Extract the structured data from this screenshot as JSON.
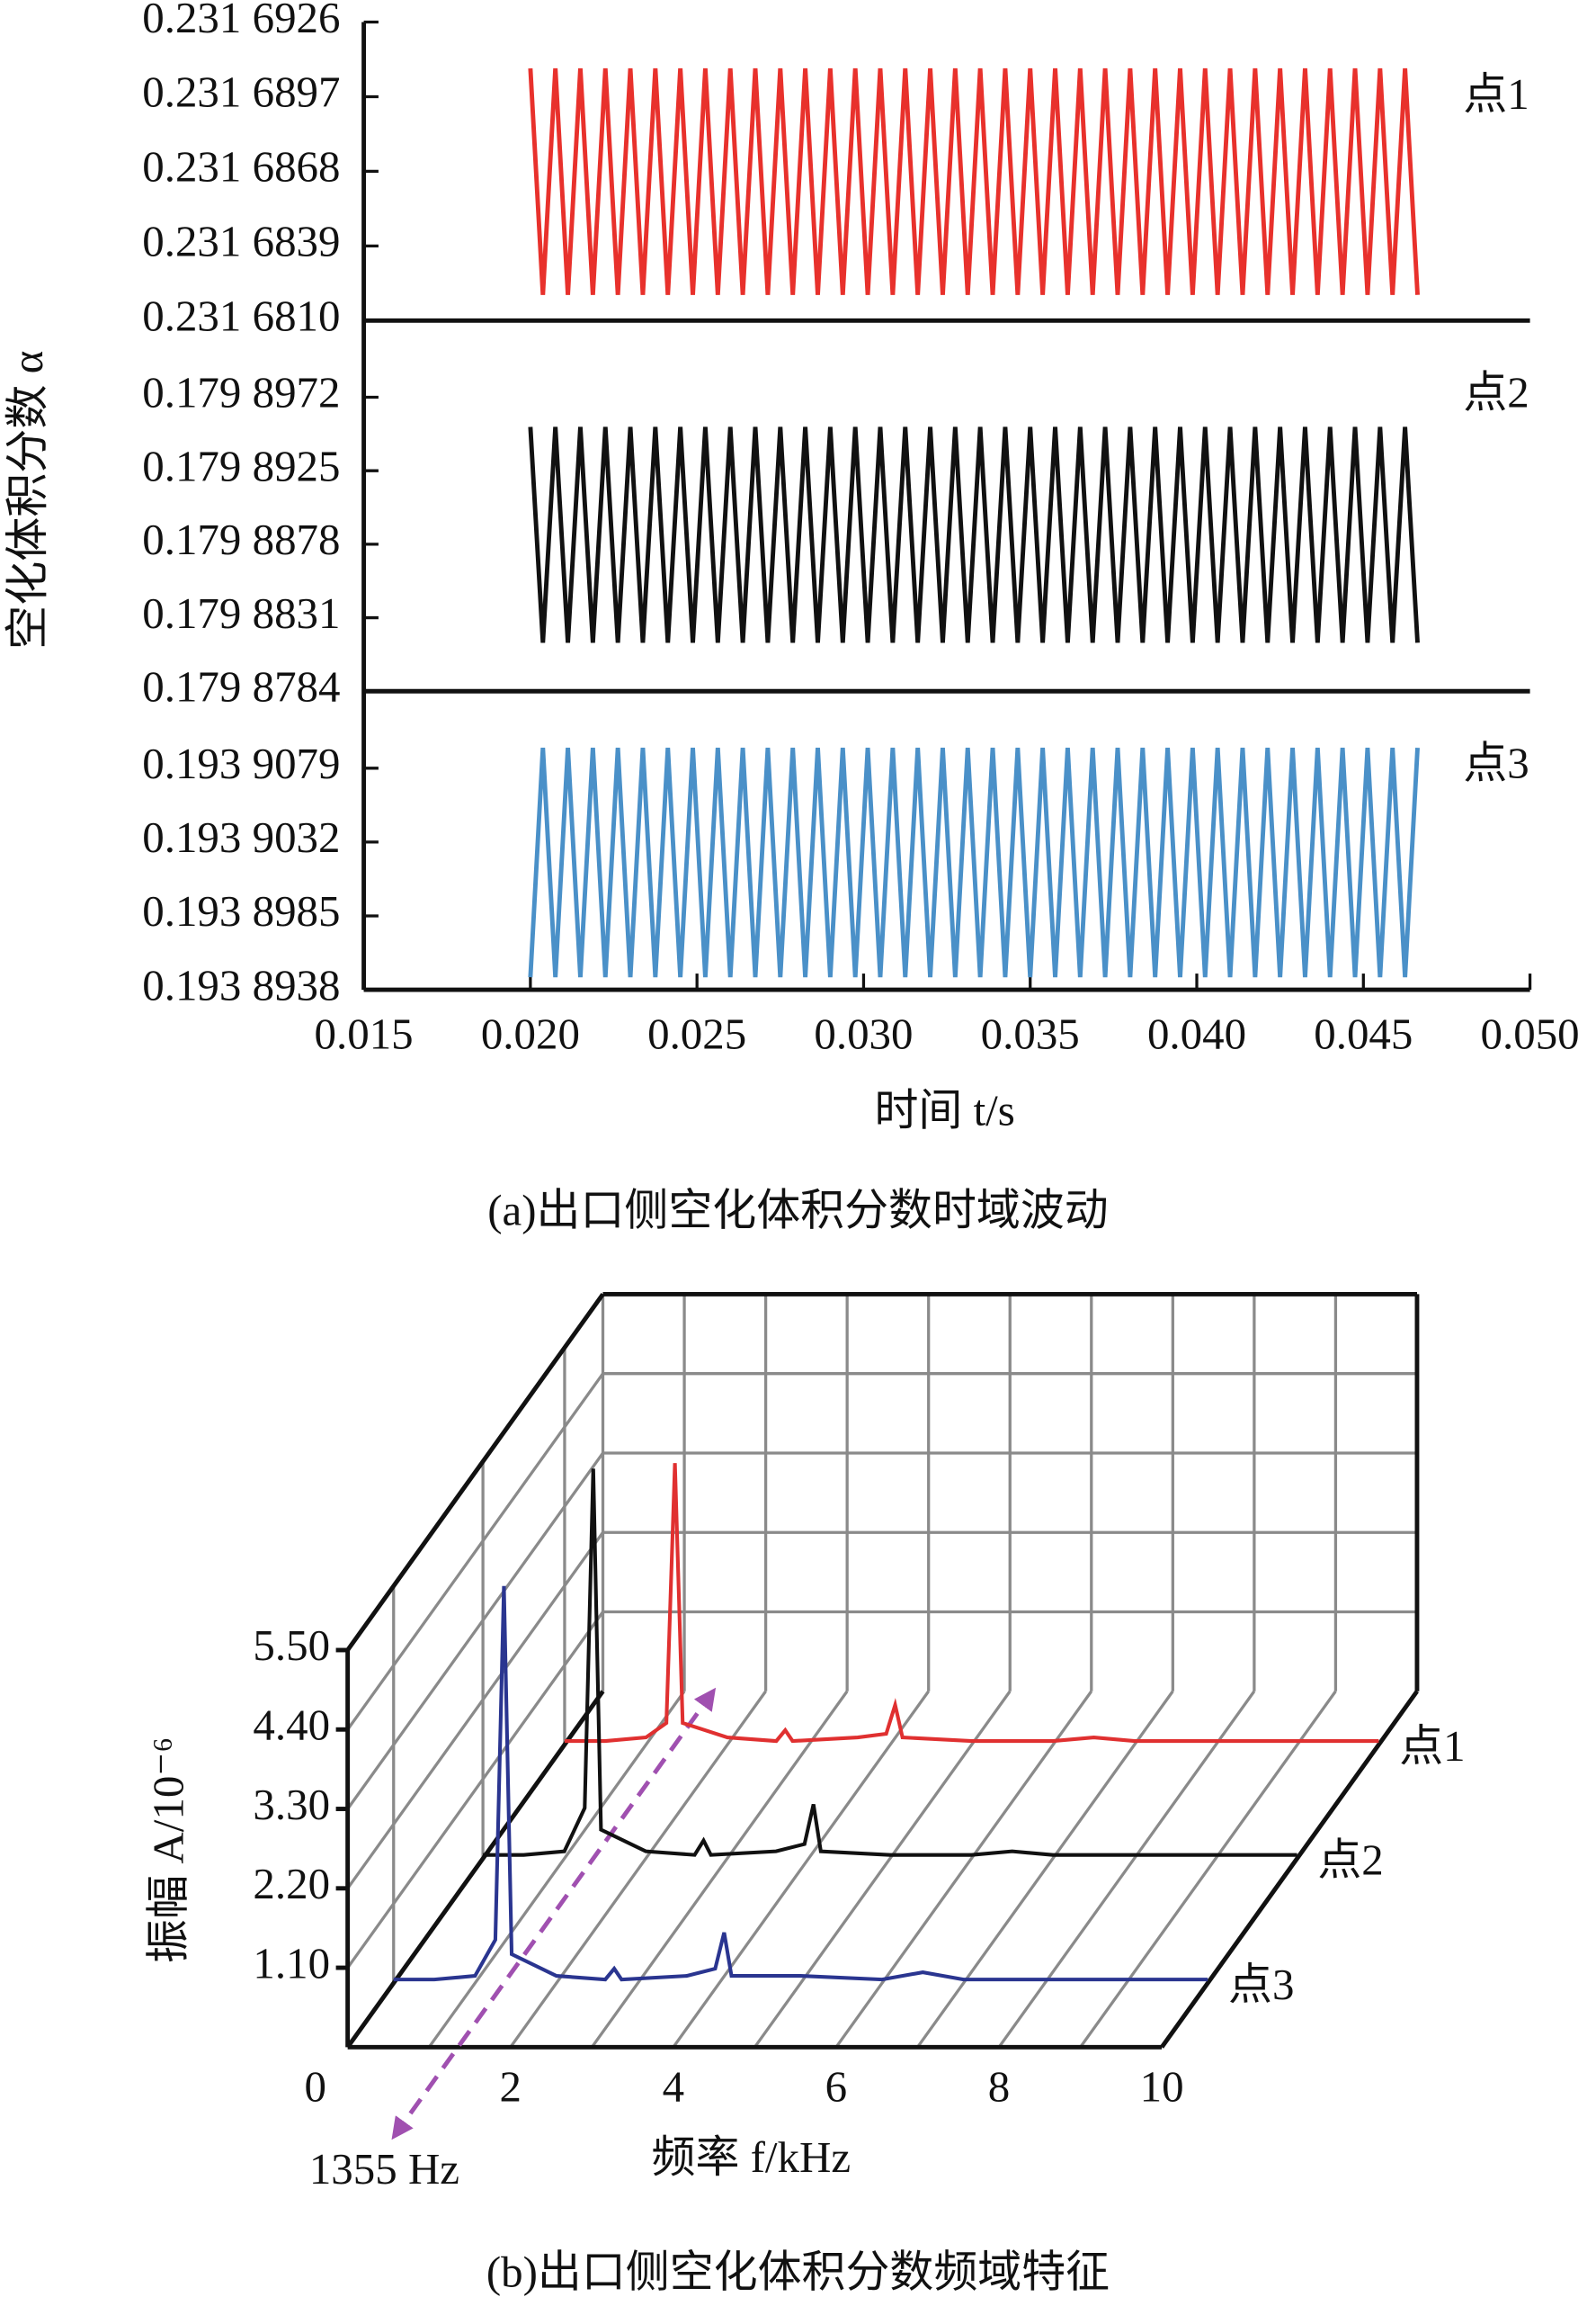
{
  "chart_data": [
    {
      "type": "line",
      "xlabel": "时间 t/s",
      "ylabel": "空化体积分数 α",
      "caption": "(a)出口侧空化体积分数时域波动",
      "xlim": [
        0.015,
        0.05
      ],
      "xticks": [
        {
          "value": 0.015,
          "label": "0.015"
        },
        {
          "value": 0.02,
          "label": "0.020"
        },
        {
          "value": 0.025,
          "label": "0.025"
        },
        {
          "value": 0.03,
          "label": "0.030"
        },
        {
          "value": 0.035,
          "label": "0.035"
        },
        {
          "value": 0.04,
          "label": "0.040"
        },
        {
          "value": 0.045,
          "label": "0.045"
        },
        {
          "value": 0.05,
          "label": "0.050"
        }
      ],
      "x": [
        0.02,
        0.020375,
        0.02075,
        0.021125,
        0.0215,
        0.021875,
        0.02225,
        0.022625,
        0.023,
        0.023375,
        0.02375,
        0.024125,
        0.0245,
        0.024875,
        0.02525,
        0.025625,
        0.026,
        0.026375,
        0.02675,
        0.027125,
        0.0275,
        0.027875,
        0.02825,
        0.028625,
        0.029,
        0.029375,
        0.02975,
        0.030125,
        0.0305,
        0.030875,
        0.03125,
        0.031625,
        0.032,
        0.032375,
        0.03275,
        0.033125,
        0.0335,
        0.033875,
        0.03425,
        0.034625,
        0.035,
        0.035375,
        0.03575,
        0.036125,
        0.0365,
        0.036875,
        0.03725,
        0.037625,
        0.038,
        0.038375,
        0.03875,
        0.039125,
        0.0395,
        0.039875,
        0.04025,
        0.040625,
        0.041,
        0.041375,
        0.04175,
        0.042125,
        0.0425,
        0.042875,
        0.04325,
        0.043625,
        0.044,
        0.044375,
        0.04475,
        0.045125,
        0.0455,
        0.045875,
        0.04625,
        0.046625
      ],
      "series": [
        {
          "name": "点1",
          "color": "#e8312c",
          "ylim": [
            0.231681,
            0.2316926
          ],
          "yticks": [
            {
              "value": 0.231681,
              "label": "0.231 6810"
            },
            {
              "value": 0.2316839,
              "label": "0.231 6839"
            },
            {
              "value": 0.2316868,
              "label": "0.231 6868"
            },
            {
              "value": 0.2316897,
              "label": "0.231 6897"
            },
            {
              "value": 0.2316926,
              "label": "0.231 6926"
            }
          ],
          "values": [
            0.2316908,
            0.231682,
            0.2316908,
            0.231682,
            0.2316908,
            0.231682,
            0.2316908,
            0.231682,
            0.2316908,
            0.231682,
            0.2316908,
            0.231682,
            0.2316908,
            0.231682,
            0.2316908,
            0.231682,
            0.2316908,
            0.231682,
            0.2316908,
            0.231682,
            0.2316908,
            0.231682,
            0.2316908,
            0.231682,
            0.2316908,
            0.231682,
            0.2316908,
            0.231682,
            0.2316908,
            0.231682,
            0.2316908,
            0.231682,
            0.2316908,
            0.231682,
            0.2316908,
            0.231682,
            0.2316908,
            0.231682,
            0.2316908,
            0.231682,
            0.2316908,
            0.231682,
            0.2316908,
            0.231682,
            0.2316908,
            0.231682,
            0.2316908,
            0.231682,
            0.2316908,
            0.231682,
            0.2316908,
            0.231682,
            0.2316908,
            0.231682,
            0.2316908,
            0.231682,
            0.2316908,
            0.231682,
            0.2316908,
            0.231682,
            0.2316908,
            0.231682,
            0.2316908,
            0.231682,
            0.2316908,
            0.231682,
            0.2316908,
            0.231682,
            0.2316908,
            0.231682,
            0.2316908,
            0.231682
          ]
        },
        {
          "name": "点2",
          "color": "#111111",
          "ylim": [
            0.1798784,
            0.1799021
          ],
          "yticks": [
            {
              "value": 0.1798784,
              "label": "0.179 8784"
            },
            {
              "value": 0.1798831,
              "label": "0.179 8831"
            },
            {
              "value": 0.1798878,
              "label": "0.179 8878"
            },
            {
              "value": 0.1798925,
              "label": "0.179 8925"
            },
            {
              "value": 0.1798972,
              "label": "0.179 8972"
            }
          ],
          "values": [
            0.1798953,
            0.1798815,
            0.1798953,
            0.1798815,
            0.1798953,
            0.1798815,
            0.1798953,
            0.1798815,
            0.1798953,
            0.1798815,
            0.1798953,
            0.1798815,
            0.1798953,
            0.1798815,
            0.1798953,
            0.1798815,
            0.1798953,
            0.1798815,
            0.1798953,
            0.1798815,
            0.1798953,
            0.1798815,
            0.1798953,
            0.1798815,
            0.1798953,
            0.1798815,
            0.1798953,
            0.1798815,
            0.1798953,
            0.1798815,
            0.1798953,
            0.1798815,
            0.1798953,
            0.1798815,
            0.1798953,
            0.1798815,
            0.1798953,
            0.1798815,
            0.1798953,
            0.1798815,
            0.1798953,
            0.1798815,
            0.1798953,
            0.1798815,
            0.1798953,
            0.1798815,
            0.1798953,
            0.1798815,
            0.1798953,
            0.1798815,
            0.1798953,
            0.1798815,
            0.1798953,
            0.1798815,
            0.1798953,
            0.1798815,
            0.1798953,
            0.1798815,
            0.1798953,
            0.1798815,
            0.1798953,
            0.1798815,
            0.1798953,
            0.1798815,
            0.1798953,
            0.1798815,
            0.1798953,
            0.1798815,
            0.1798953,
            0.1798815,
            0.1798953,
            0.1798815
          ]
        },
        {
          "name": "点3",
          "color": "#4a90c8",
          "ylim": [
            0.1938938,
            0.1939128
          ],
          "yticks": [
            {
              "value": 0.1938938,
              "label": "0.193 8938"
            },
            {
              "value": 0.1938985,
              "label": "0.193 8985"
            },
            {
              "value": 0.1939032,
              "label": "0.193 9032"
            },
            {
              "value": 0.1939079,
              "label": "0.193 9079"
            }
          ],
          "values": [
            0.1938946,
            0.1939092,
            0.1938946,
            0.1939092,
            0.1938946,
            0.1939092,
            0.1938946,
            0.1939092,
            0.1938946,
            0.1939092,
            0.1938946,
            0.1939092,
            0.1938946,
            0.1939092,
            0.1938946,
            0.1939092,
            0.1938946,
            0.1939092,
            0.1938946,
            0.1939092,
            0.1938946,
            0.1939092,
            0.1938946,
            0.1939092,
            0.1938946,
            0.1939092,
            0.1938946,
            0.1939092,
            0.1938946,
            0.1939092,
            0.1938946,
            0.1939092,
            0.1938946,
            0.1939092,
            0.1938946,
            0.1939092,
            0.1938946,
            0.1939092,
            0.1938946,
            0.1939092,
            0.1938946,
            0.1939092,
            0.1938946,
            0.1939092,
            0.1938946,
            0.1939092,
            0.1938946,
            0.1939092,
            0.1938946,
            0.1939092,
            0.1938946,
            0.1939092,
            0.1938946,
            0.1939092,
            0.1938946,
            0.1939092,
            0.1938946,
            0.1939092,
            0.1938946,
            0.1939092,
            0.1938946,
            0.1939092,
            0.1938946,
            0.1939092,
            0.1938946,
            0.1939092,
            0.1938946,
            0.1939092,
            0.1938946,
            0.1939092,
            0.1938946,
            0.1939092
          ]
        }
      ]
    },
    {
      "type": "waterfall",
      "xlabel": "频率 f/kHz",
      "ylabel": "振幅 A/10⁻⁶",
      "caption": "(b)出口侧空化体积分数频域特征",
      "xlim": [
        0,
        10
      ],
      "xticks": [
        0,
        2,
        4,
        6,
        8,
        10
      ],
      "xminor": [
        1,
        3,
        5,
        7,
        9
      ],
      "ylim": [
        0,
        5.5
      ],
      "yticks": [
        {
          "value": 1.1,
          "label": "1.10"
        },
        {
          "value": 2.2,
          "label": "2.20"
        },
        {
          "value": 3.3,
          "label": "3.30"
        },
        {
          "value": 4.4,
          "label": "4.40"
        },
        {
          "value": 5.5,
          "label": "5.50"
        }
      ],
      "x": [
        0,
        0.5,
        1.0,
        1.25,
        1.355,
        1.45,
        2.0,
        2.6,
        2.71,
        2.8,
        3.6,
        3.95,
        4.06,
        4.15,
        5.0,
        6.0,
        6.5,
        7.0,
        8.0,
        9.0,
        10.0
      ],
      "series": [
        {
          "name": "点1",
          "color": "#e03030",
          "values": [
            0.05,
            0.05,
            0.1,
            0.3,
            3.9,
            0.3,
            0.1,
            0.05,
            0.2,
            0.05,
            0.1,
            0.15,
            0.55,
            0.1,
            0.05,
            0.05,
            0.1,
            0.05,
            0.05,
            0.05,
            0.05
          ]
        },
        {
          "name": "点2",
          "color": "#111111",
          "values": [
            0.05,
            0.05,
            0.1,
            0.7,
            5.4,
            0.4,
            0.1,
            0.05,
            0.25,
            0.05,
            0.1,
            0.2,
            0.75,
            0.1,
            0.05,
            0.05,
            0.1,
            0.05,
            0.05,
            0.05,
            0.05
          ]
        },
        {
          "name": "点3",
          "color": "#2a3590",
          "values": [
            0.05,
            0.05,
            0.1,
            0.6,
            5.5,
            0.4,
            0.1,
            0.05,
            0.2,
            0.05,
            0.1,
            0.2,
            0.7,
            0.1,
            0.1,
            0.05,
            0.15,
            0.05,
            0.05,
            0.05,
            0.05
          ]
        }
      ],
      "annotation": {
        "label": "1355 Hz",
        "x": 1.355
      }
    }
  ]
}
